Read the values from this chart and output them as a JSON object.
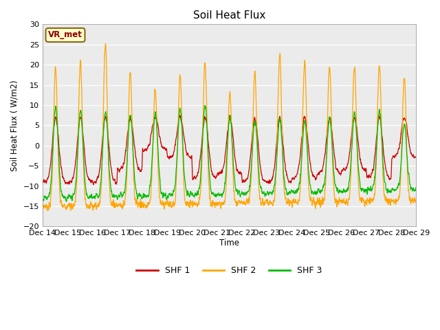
{
  "title": "Soil Heat Flux",
  "ylabel": "Soil Heat Flux ( W/m2)",
  "xlabel": "Time",
  "ylim": [
    -20,
    30
  ],
  "annotation": "VR_met",
  "legend_labels": [
    "SHF 1",
    "SHF 2",
    "SHF 3"
  ],
  "line_colors": [
    "#cc0000",
    "#ffa500",
    "#00bb00"
  ],
  "fig_bg_color": "#ffffff",
  "plot_bg_color": "#ebebeb",
  "grid_color": "#ffffff",
  "xtick_labels": [
    "Dec 14",
    "Dec 15",
    "Dec 16",
    "Dec 17",
    "Dec 18",
    "Dec 19",
    "Dec 20",
    "Dec 21",
    "Dec 22",
    "Dec 23",
    "Dec 24",
    "Dec 25",
    "Dec 26",
    "Dec 27",
    "Dec 28",
    "Dec 29"
  ],
  "n_days": 15,
  "pts_per_day": 144
}
